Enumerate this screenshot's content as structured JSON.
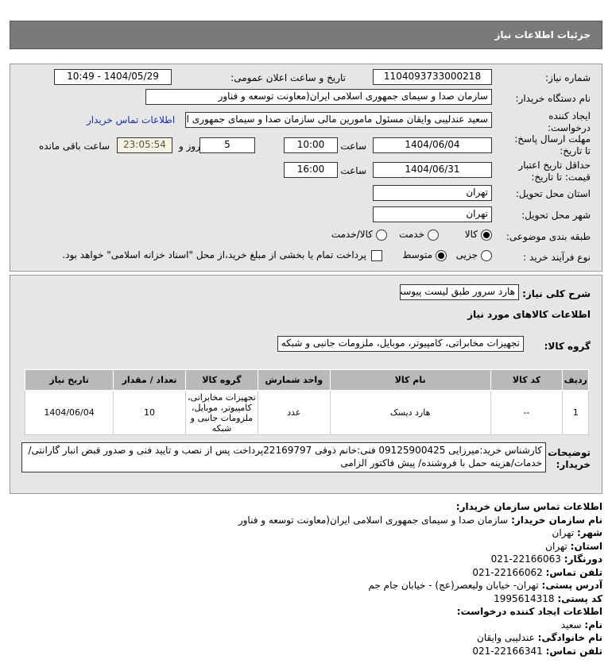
{
  "header": {
    "title": "جزئیات اطلاعات نیاز"
  },
  "form": {
    "need_number_label": "شماره نیاز:",
    "need_number": "1104093733000218",
    "announce_label": "تاریخ و ساعت اعلان عمومی:",
    "announce_value": "1404/05/29 - 10:49",
    "buyer_org_label": "نام دستگاه خریدار:",
    "buyer_org": "سازمان صدا و سیمای جمهوری اسلامی ایران(معاونت توسعه و فناور",
    "creator_label": "ایجاد کننده درخواست:",
    "creator": "سعید عندلیبی وایقان مسئول مامورین مالی  سازمان صدا و سیمای جمهوری اس",
    "contact_link": "اطلاعات تماس خریدار",
    "deadline_label": "مهلت ارسال پاسخ: تا تاریخ:",
    "deadline_date": "1404/06/04",
    "time_label": "ساعت",
    "deadline_time": "10:00",
    "days": "5",
    "days_label": "روز و",
    "remaining": "23:05:54",
    "remaining_label": "ساعت باقی مانده",
    "validity_label": "حداقل تاریخ اعتبار قیمت: تا تاریخ:",
    "validity_date": "1404/06/31",
    "validity_time": "16:00",
    "province_label": "استان محل تحویل:",
    "province": "تهران",
    "city_label": "شهر محل تحویل:",
    "city": "تهران",
    "category_label": "طبقه بندی موضوعی:",
    "category_options": [
      "کالا",
      "خدمت",
      "کالا/خدمت"
    ],
    "category_selected": "کالا",
    "process_label": "نوع فرآیند خرید :",
    "process_options": [
      "جزیی",
      "متوسط"
    ],
    "process_selected": "متوسط",
    "payment_note": "پرداخت تمام یا بخشی از مبلغ خرید،از محل \"اسناد خزانه اسلامی\" خواهد بود."
  },
  "details": {
    "desc_label": "شرح کلی نیاز:",
    "desc": "هارد سرور طبق لیست پیوست",
    "goods_info_title": "اطلاعات کالاهای مورد نیاز",
    "group_label": "گروه کالا:",
    "group": "تجهیزات مخابراتی، کامپیوتر، موبایل، ملزومات جانبی و شبکه",
    "table": {
      "headers": [
        "ردیف",
        "کد کالا",
        "نام کالا",
        "واحد شمارش",
        "گروه کالا",
        "تعداد / مقدار",
        "تاریخ نیاز"
      ],
      "rows": [
        [
          "1",
          "--",
          "هارد دیسک",
          "عدد",
          "تجهیزات مخابراتی، کامپیوتر، موبایل، ملزومات جانبی و شبکه",
          "10",
          "1404/06/04"
        ]
      ]
    },
    "notes_label": "توضیحات خریدار:",
    "notes": "کارشناس خرید:میرزایی 09125900425 فنی:خانم ذوقی 22169797پرداخت پس از نصب و تایید فنی و صدور قبض انبار گارانتی/خدمات/هزینه حمل با فروشنده/ پیش فاکتور الزامی"
  },
  "contact": {
    "title": "اطلاعات تماس سازمان خریدار:",
    "org_label": "نام سازمان خریدار:",
    "org": "سازمان صدا و سیمای جمهوری اسلامی ایران(معاونت توسعه و فناور",
    "city_label": "شهر:",
    "city": "تهران",
    "province_label": "استان:",
    "province": "تهران",
    "fax_label": "دورنگار:",
    "fax": "22166063-021",
    "phone_label": "تلفن تماس:",
    "phone": "22166062-021",
    "address_label": "آدرس پستی:",
    "address": "تهران- خیابان ولیعصر(عج) - خیابان جام جم",
    "postal_label": "کد پستی:",
    "postal": "1995614318",
    "creator_title": "اطلاعات ایجاد کننده درخواست:",
    "name_label": "نام:",
    "name": "سعید",
    "family_label": "نام خانوادگی:",
    "family": "عندلیبی وایقان",
    "creator_phone_label": "تلفن تماس:",
    "creator_phone": "22166341-021"
  }
}
